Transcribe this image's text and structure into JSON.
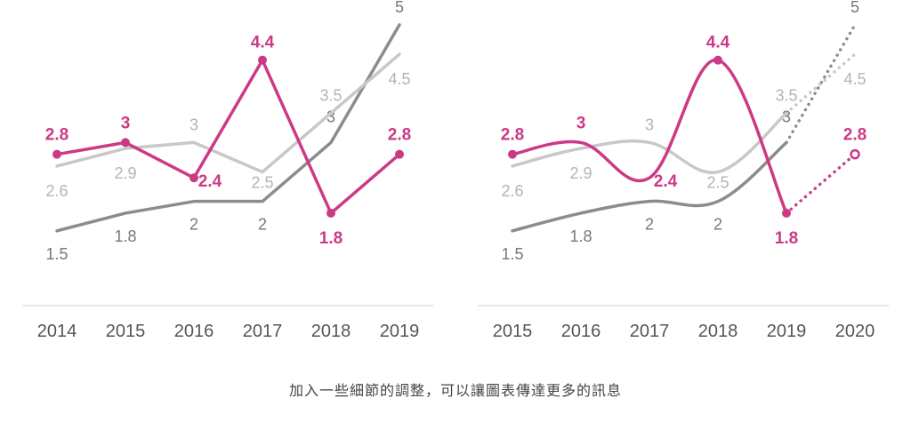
{
  "caption": "加入一些細節的調整，可以讓圖表傳達更多的訊息",
  "colors": {
    "pink": "#cc3a86",
    "dark": "#8c8c8c",
    "light": "#c8c8c8",
    "axis": "#dddddd",
    "tick": "#555555"
  },
  "chart_data": [
    {
      "type": "line",
      "style": "straight",
      "categories": [
        "2014",
        "2015",
        "2016",
        "2017",
        "2018",
        "2019"
      ],
      "ylim": [
        0,
        6
      ],
      "grid": false,
      "legend": "none",
      "series": [
        {
          "key": "dark",
          "values": [
            1.5,
            1.8,
            2,
            2,
            3,
            5
          ],
          "labels": [
            "1.5",
            "1.8",
            "2",
            "2",
            "3",
            "5"
          ]
        },
        {
          "key": "light",
          "values": [
            2.6,
            2.9,
            3,
            2.5,
            3.5,
            4.5
          ],
          "labels": [
            "2.6",
            "2.9",
            "3",
            "2.5",
            "3.5",
            "4.5"
          ]
        },
        {
          "key": "pink",
          "values": [
            2.8,
            3,
            2.4,
            4.4,
            1.8,
            2.8
          ],
          "labels": [
            "2.8",
            "3",
            "2.4",
            "4.4",
            "1.8",
            "2.8"
          ]
        }
      ]
    },
    {
      "type": "line",
      "style": "smooth-with-forecast",
      "categories": [
        "2015",
        "2016",
        "2017",
        "2018",
        "2019",
        "2020"
      ],
      "ylim": [
        0,
        6
      ],
      "grid": false,
      "legend": "none",
      "forecast_from_index": 4,
      "series": [
        {
          "key": "dark",
          "values": [
            1.5,
            1.8,
            2,
            2,
            3,
            5
          ],
          "labels": [
            "1.5",
            "1.8",
            "2",
            "2",
            "3",
            "5"
          ]
        },
        {
          "key": "light",
          "values": [
            2.6,
            2.9,
            3,
            2.5,
            3.5,
            4.5
          ],
          "labels": [
            "2.6",
            "2.9",
            "3",
            "2.5",
            "3.5",
            "4.5"
          ]
        },
        {
          "key": "pink",
          "values": [
            2.8,
            3,
            2.4,
            4.4,
            1.8,
            2.8
          ],
          "labels": [
            "2.8",
            "3",
            "2.4",
            "4.4",
            "1.8",
            "2.8"
          ]
        }
      ]
    }
  ]
}
